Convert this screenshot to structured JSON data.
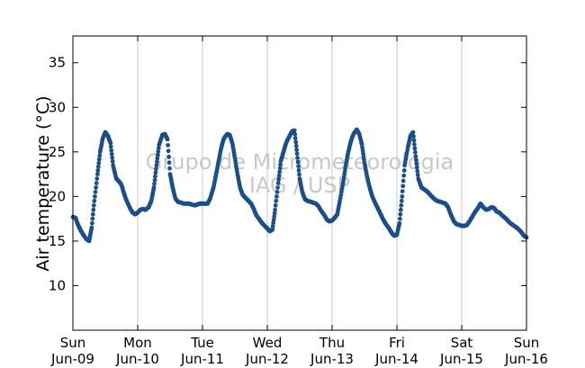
{
  "chart_data": {
    "type": "scatter",
    "title": "",
    "ylabel": "Air temperature (°C)",
    "xlabel": "",
    "ylim": [
      5,
      38
    ],
    "yticks": [
      10,
      15,
      20,
      25,
      30,
      35
    ],
    "xlim_days": [
      0,
      7
    ],
    "xticks": [
      {
        "day": 0,
        "weekday": "Sun",
        "date": "Jun-09"
      },
      {
        "day": 1,
        "weekday": "Mon",
        "date": "Jun-10"
      },
      {
        "day": 2,
        "weekday": "Tue",
        "date": "Jun-11"
      },
      {
        "day": 3,
        "weekday": "Wed",
        "date": "Jun-12"
      },
      {
        "day": 4,
        "weekday": "Thu",
        "date": "Jun-13"
      },
      {
        "day": 5,
        "weekday": "Fri",
        "date": "Jun-14"
      },
      {
        "day": 6,
        "weekday": "Sat",
        "date": "Jun-15"
      },
      {
        "day": 7,
        "weekday": "Sun",
        "date": "Jun-16"
      }
    ],
    "grid": "vertical",
    "marker_color": "#1a4f8a",
    "watermark": [
      "Grupo de Micrometeorologia",
      "IAG / USP"
    ],
    "series": [
      {
        "name": "",
        "x_unit": "days since Jun-09 00:00",
        "points": [
          [
            0.0,
            17.7
          ],
          [
            0.04,
            17.6
          ],
          [
            0.08,
            16.8
          ],
          [
            0.12,
            16.2
          ],
          [
            0.17,
            15.6
          ],
          [
            0.21,
            15.2
          ],
          [
            0.25,
            15.0
          ],
          [
            0.29,
            16.5
          ],
          [
            0.33,
            19.5
          ],
          [
            0.38,
            22.5
          ],
          [
            0.42,
            25.0
          ],
          [
            0.46,
            26.5
          ],
          [
            0.5,
            27.2
          ],
          [
            0.54,
            26.8
          ],
          [
            0.58,
            26.0
          ],
          [
            0.62,
            23.5
          ],
          [
            0.67,
            22.0
          ],
          [
            0.71,
            21.7
          ],
          [
            0.75,
            21.3
          ],
          [
            0.79,
            20.3
          ],
          [
            0.83,
            19.5
          ],
          [
            0.88,
            18.7
          ],
          [
            0.92,
            18.2
          ],
          [
            0.96,
            18.0
          ],
          [
            1.0,
            18.2
          ],
          [
            1.04,
            18.5
          ],
          [
            1.08,
            18.6
          ],
          [
            1.12,
            18.5
          ],
          [
            1.17,
            18.8
          ],
          [
            1.21,
            19.5
          ],
          [
            1.25,
            21.0
          ],
          [
            1.29,
            23.5
          ],
          [
            1.33,
            25.8
          ],
          [
            1.38,
            26.9
          ],
          [
            1.42,
            27.0
          ],
          [
            1.46,
            26.4
          ],
          [
            1.5,
            22.5
          ],
          [
            1.54,
            21.0
          ],
          [
            1.58,
            19.8
          ],
          [
            1.62,
            19.4
          ],
          [
            1.67,
            19.3
          ],
          [
            1.71,
            19.2
          ],
          [
            1.75,
            19.2
          ],
          [
            1.79,
            19.2
          ],
          [
            1.83,
            19.1
          ],
          [
            1.88,
            19.0
          ],
          [
            1.92,
            19.1
          ],
          [
            1.96,
            19.2
          ],
          [
            2.0,
            19.2
          ],
          [
            2.04,
            19.2
          ],
          [
            2.08,
            19.2
          ],
          [
            2.12,
            19.8
          ],
          [
            2.17,
            21.0
          ],
          [
            2.21,
            22.5
          ],
          [
            2.25,
            24.0
          ],
          [
            2.29,
            25.5
          ],
          [
            2.33,
            26.5
          ],
          [
            2.38,
            27.0
          ],
          [
            2.42,
            26.9
          ],
          [
            2.46,
            26.0
          ],
          [
            2.5,
            24.3
          ],
          [
            2.54,
            22.5
          ],
          [
            2.58,
            21.0
          ],
          [
            2.62,
            20.2
          ],
          [
            2.67,
            19.8
          ],
          [
            2.71,
            19.5
          ],
          [
            2.75,
            19.2
          ],
          [
            2.79,
            18.6
          ],
          [
            2.83,
            17.9
          ],
          [
            2.88,
            17.4
          ],
          [
            2.92,
            17.0
          ],
          [
            2.96,
            16.7
          ],
          [
            3.0,
            16.4
          ],
          [
            3.04,
            16.1
          ],
          [
            3.08,
            16.3
          ],
          [
            3.12,
            18.5
          ],
          [
            3.17,
            21.5
          ],
          [
            3.21,
            24.0
          ],
          [
            3.25,
            25.0
          ],
          [
            3.29,
            26.0
          ],
          [
            3.33,
            26.6
          ],
          [
            3.38,
            27.3
          ],
          [
            3.42,
            27.4
          ],
          [
            3.46,
            24.8
          ],
          [
            3.5,
            22.0
          ],
          [
            3.54,
            20.5
          ],
          [
            3.58,
            19.7
          ],
          [
            3.62,
            19.5
          ],
          [
            3.67,
            19.4
          ],
          [
            3.71,
            19.3
          ],
          [
            3.75,
            19.2
          ],
          [
            3.79,
            18.9
          ],
          [
            3.83,
            18.4
          ],
          [
            3.88,
            17.9
          ],
          [
            3.92,
            17.4
          ],
          [
            3.96,
            17.2
          ],
          [
            4.0,
            17.3
          ],
          [
            4.04,
            17.6
          ],
          [
            4.08,
            18.0
          ],
          [
            4.12,
            19.5
          ],
          [
            4.17,
            21.5
          ],
          [
            4.21,
            23.5
          ],
          [
            4.25,
            25.0
          ],
          [
            4.29,
            26.2
          ],
          [
            4.33,
            27.0
          ],
          [
            4.38,
            27.5
          ],
          [
            4.42,
            27.0
          ],
          [
            4.46,
            25.8
          ],
          [
            4.5,
            23.8
          ],
          [
            4.54,
            22.2
          ],
          [
            4.58,
            21.0
          ],
          [
            4.62,
            20.0
          ],
          [
            4.67,
            19.2
          ],
          [
            4.71,
            18.6
          ],
          [
            4.75,
            18.0
          ],
          [
            4.79,
            17.4
          ],
          [
            4.83,
            16.9
          ],
          [
            4.88,
            16.4
          ],
          [
            4.92,
            15.9
          ],
          [
            4.96,
            15.6
          ],
          [
            5.0,
            15.7
          ],
          [
            5.04,
            17.0
          ],
          [
            5.08,
            20.0
          ],
          [
            5.12,
            23.5
          ],
          [
            5.17,
            25.5
          ],
          [
            5.21,
            26.8
          ],
          [
            5.25,
            27.2
          ],
          [
            5.29,
            24.5
          ],
          [
            5.33,
            22.0
          ],
          [
            5.38,
            21.0
          ],
          [
            5.42,
            20.8
          ],
          [
            5.46,
            20.6
          ],
          [
            5.5,
            20.3
          ],
          [
            5.54,
            20.0
          ],
          [
            5.58,
            19.7
          ],
          [
            5.62,
            19.5
          ],
          [
            5.67,
            19.4
          ],
          [
            5.71,
            19.3
          ],
          [
            5.75,
            19.2
          ],
          [
            5.79,
            18.8
          ],
          [
            5.83,
            18.0
          ],
          [
            5.88,
            17.2
          ],
          [
            5.92,
            16.9
          ],
          [
            5.96,
            16.8
          ],
          [
            6.0,
            16.7
          ],
          [
            6.04,
            16.7
          ],
          [
            6.08,
            16.8
          ],
          [
            6.12,
            17.2
          ],
          [
            6.17,
            17.8
          ],
          [
            6.21,
            18.3
          ],
          [
            6.25,
            18.7
          ],
          [
            6.29,
            19.2
          ],
          [
            6.33,
            18.8
          ],
          [
            6.38,
            18.5
          ],
          [
            6.42,
            18.6
          ],
          [
            6.46,
            18.8
          ],
          [
            6.5,
            18.7
          ],
          [
            6.54,
            18.3
          ],
          [
            6.58,
            18.2
          ],
          [
            6.62,
            17.9
          ],
          [
            6.67,
            17.6
          ],
          [
            6.71,
            17.3
          ],
          [
            6.75,
            17.0
          ],
          [
            6.79,
            16.8
          ],
          [
            6.83,
            16.6
          ],
          [
            6.88,
            16.3
          ],
          [
            6.92,
            16.0
          ],
          [
            6.96,
            15.6
          ],
          [
            7.0,
            15.4
          ]
        ]
      }
    ]
  }
}
